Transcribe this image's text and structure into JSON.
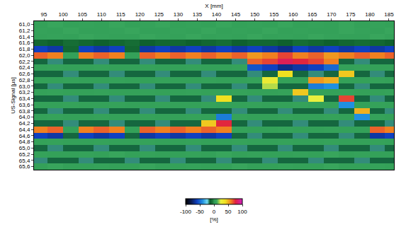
{
  "chart_data": {
    "type": "heatmap",
    "x_label": "X [mm]",
    "y_label": "US-Signal [µs]",
    "grid": false,
    "xlim": [
      92.4,
      186.3
    ],
    "ylim": [
      65.7,
      60.9
    ],
    "xticks": [
      95,
      100,
      105,
      110,
      115,
      120,
      125,
      130,
      135,
      140,
      145,
      150,
      155,
      160,
      165,
      170,
      175,
      180,
      185
    ],
    "yticks": [
      {
        "value": 61.0,
        "label": "61,0"
      },
      {
        "value": 61.2,
        "label": "61,2"
      },
      {
        "value": 61.4,
        "label": "61,4"
      },
      {
        "value": 61.6,
        "label": "61,6"
      },
      {
        "value": 61.8,
        "label": "61,8"
      },
      {
        "value": 62.0,
        "label": "62,0"
      },
      {
        "value": 62.2,
        "label": "62,2"
      },
      {
        "value": 62.4,
        "label": "62,4"
      },
      {
        "value": 62.6,
        "label": "62,6"
      },
      {
        "value": 62.8,
        "label": "62,8"
      },
      {
        "value": 63.0,
        "label": "63,0"
      },
      {
        "value": 63.2,
        "label": "63,2"
      },
      {
        "value": 63.4,
        "label": "63,4"
      },
      {
        "value": 63.6,
        "label": "63,6"
      },
      {
        "value": 63.8,
        "label": "63,8"
      },
      {
        "value": 64.0,
        "label": "64,0"
      },
      {
        "value": 64.2,
        "label": "64,2"
      },
      {
        "value": 64.4,
        "label": "64,4"
      },
      {
        "value": 64.6,
        "label": "64,6"
      },
      {
        "value": 64.8,
        "label": "64,8"
      },
      {
        "value": 65.0,
        "label": "65,0"
      },
      {
        "value": 65.2,
        "label": "65,2"
      },
      {
        "value": 65.4,
        "label": "65,4"
      },
      {
        "value": 65.6,
        "label": "65,6"
      }
    ],
    "colorbar": {
      "title": "[%]",
      "range": [
        -100,
        100
      ],
      "ticks": [
        -100,
        -50,
        0,
        50,
        100
      ]
    },
    "x": [
      94,
      98,
      102,
      106,
      110,
      114,
      118,
      122,
      126,
      130,
      134,
      138,
      142,
      146,
      150,
      154,
      158,
      162,
      166,
      170,
      174,
      178,
      182,
      186
    ],
    "y": [
      61.0,
      61.2,
      61.4,
      61.6,
      61.8,
      62.0,
      62.2,
      62.4,
      62.6,
      62.8,
      63.0,
      63.2,
      63.4,
      63.6,
      63.8,
      64.0,
      64.2,
      64.4,
      64.6,
      64.8,
      65.0,
      65.2,
      65.4,
      65.6
    ],
    "z": [
      [
        5,
        8,
        5,
        6,
        5,
        8,
        5,
        6,
        8,
        5,
        6,
        5,
        8,
        5,
        6,
        5,
        8,
        5,
        6,
        5,
        8,
        5,
        6,
        5
      ],
      [
        6,
        5,
        8,
        5,
        5,
        6,
        8,
        5,
        5,
        6,
        5,
        8,
        5,
        6,
        5,
        8,
        5,
        6,
        5,
        5,
        8,
        6,
        5,
        8
      ],
      [
        5,
        6,
        5,
        8,
        6,
        5,
        5,
        8,
        6,
        5,
        8,
        5,
        6,
        5,
        8,
        5,
        6,
        5,
        8,
        6,
        5,
        5,
        8,
        6
      ],
      [
        -10,
        -12,
        -8,
        -10,
        -12,
        -10,
        -8,
        -12,
        -10,
        -10,
        -12,
        -10,
        -8,
        -12,
        -10,
        -10,
        -12,
        -8,
        -10,
        -12,
        -10,
        -8,
        -10,
        -12
      ],
      [
        -60,
        -65,
        -10,
        -60,
        -65,
        -60,
        -10,
        -65,
        -60,
        -65,
        -60,
        -65,
        -60,
        -65,
        -60,
        -65,
        -70,
        -60,
        -65,
        -60,
        -65,
        -60,
        -65,
        -60
      ],
      [
        65,
        60,
        5,
        60,
        65,
        60,
        5,
        65,
        60,
        65,
        60,
        65,
        60,
        65,
        55,
        60,
        70,
        60,
        65,
        55,
        60,
        65,
        60,
        65
      ],
      [
        -15,
        -18,
        -15,
        -15,
        -18,
        -15,
        -15,
        -18,
        -15,
        -15,
        -18,
        -15,
        -15,
        -18,
        65,
        70,
        80,
        75,
        70,
        60,
        -15,
        -18,
        -15,
        -15
      ],
      [
        5,
        6,
        5,
        5,
        6,
        5,
        5,
        6,
        5,
        5,
        6,
        5,
        5,
        6,
        -55,
        -60,
        -70,
        -65,
        -60,
        -50,
        5,
        6,
        5,
        5
      ],
      [
        -15,
        -15,
        -18,
        -15,
        -15,
        -18,
        -15,
        -15,
        -18,
        -15,
        -15,
        -18,
        -15,
        -15,
        -18,
        -15,
        40,
        -15,
        -18,
        -15,
        45,
        -15,
        -18,
        -15
      ],
      [
        5,
        5,
        6,
        5,
        5,
        6,
        5,
        5,
        6,
        5,
        5,
        6,
        5,
        5,
        6,
        30,
        5,
        5,
        55,
        50,
        5,
        5,
        6,
        5
      ],
      [
        -15,
        -18,
        -15,
        -15,
        -18,
        -15,
        -15,
        -18,
        -15,
        -15,
        -18,
        -15,
        -15,
        -18,
        -15,
        20,
        -15,
        -15,
        -45,
        -40,
        -15,
        -18,
        -15,
        -15
      ],
      [
        5,
        6,
        5,
        5,
        6,
        5,
        5,
        6,
        5,
        5,
        6,
        5,
        5,
        6,
        5,
        5,
        6,
        45,
        5,
        5,
        6,
        5,
        5,
        6
      ],
      [
        -15,
        -15,
        -18,
        -15,
        -15,
        -18,
        -15,
        -15,
        -18,
        -15,
        -15,
        -18,
        40,
        -15,
        -18,
        -15,
        -15,
        -18,
        25,
        -15,
        70,
        -15,
        -18,
        -15
      ],
      [
        5,
        5,
        6,
        5,
        5,
        6,
        5,
        5,
        6,
        5,
        5,
        6,
        5,
        5,
        6,
        5,
        5,
        6,
        5,
        5,
        -40,
        5,
        6,
        5
      ],
      [
        -15,
        -18,
        -15,
        -15,
        -18,
        -15,
        -15,
        -18,
        -15,
        -15,
        -18,
        -15,
        -15,
        -18,
        -15,
        -15,
        -18,
        -15,
        -15,
        -18,
        -15,
        50,
        -15,
        -18
      ],
      [
        5,
        6,
        5,
        5,
        6,
        5,
        5,
        6,
        5,
        5,
        6,
        5,
        -45,
        6,
        5,
        5,
        6,
        5,
        5,
        6,
        5,
        -40,
        6,
        5
      ],
      [
        -15,
        -15,
        -18,
        -15,
        -15,
        -18,
        -15,
        -15,
        -18,
        -15,
        -15,
        45,
        75,
        -15,
        -18,
        -15,
        -15,
        -18,
        -15,
        -15,
        -18,
        -15,
        -15,
        -18
      ],
      [
        60,
        65,
        5,
        60,
        65,
        60,
        5,
        65,
        60,
        65,
        60,
        65,
        60,
        6,
        5,
        5,
        6,
        5,
        5,
        6,
        5,
        5,
        65,
        60
      ],
      [
        -60,
        -65,
        -15,
        -60,
        -65,
        -60,
        -15,
        -65,
        -60,
        -65,
        -60,
        -65,
        -60,
        -15,
        -18,
        -15,
        -15,
        -18,
        -15,
        -15,
        -18,
        -15,
        -65,
        -60
      ],
      [
        5,
        6,
        5,
        5,
        6,
        5,
        5,
        6,
        5,
        5,
        6,
        5,
        5,
        6,
        5,
        5,
        6,
        5,
        5,
        6,
        5,
        5,
        6,
        5
      ],
      [
        -15,
        -18,
        -15,
        -15,
        -18,
        -15,
        -15,
        -18,
        -15,
        -15,
        -18,
        -15,
        -15,
        -18,
        -15,
        -15,
        -18,
        -15,
        -15,
        -18,
        -15,
        -15,
        -18,
        -15
      ],
      [
        6,
        5,
        5,
        6,
        5,
        8,
        5,
        6,
        5,
        5,
        6,
        5,
        8,
        5,
        6,
        5,
        5,
        6,
        5,
        8,
        5,
        6,
        5,
        5
      ],
      [
        -18,
        -15,
        -15,
        -18,
        -15,
        -15,
        -18,
        -15,
        -15,
        -18,
        -15,
        -15,
        -18,
        -15,
        -15,
        -18,
        -15,
        -15,
        -18,
        -15,
        -15,
        -18,
        -15,
        -15
      ],
      [
        5,
        8,
        5,
        5,
        6,
        5,
        5,
        8,
        5,
        5,
        6,
        5,
        5,
        8,
        5,
        5,
        6,
        5,
        5,
        8,
        5,
        5,
        6,
        5
      ]
    ]
  }
}
